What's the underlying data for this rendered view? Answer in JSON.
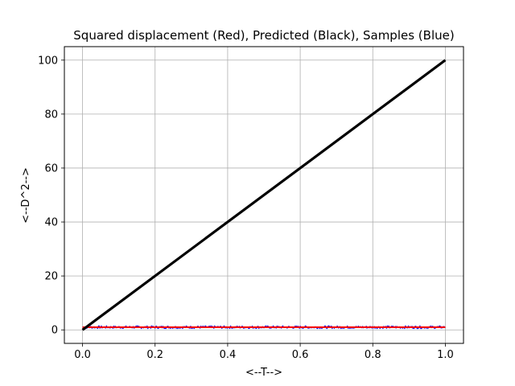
{
  "chart_data": {
    "type": "line",
    "title": "Squared displacement (Red), Predicted (Black), Samples (Blue)",
    "xlabel": "<--T-->",
    "ylabel": "<--D^2-->",
    "xlim": [
      -0.05,
      1.05
    ],
    "ylim": [
      -5,
      105
    ],
    "xticks": [
      0.0,
      0.2,
      0.4,
      0.6,
      0.8,
      1.0
    ],
    "xtick_labels": [
      "0.0",
      "0.2",
      "0.4",
      "0.6",
      "0.8",
      "1.0"
    ],
    "yticks": [
      0,
      20,
      40,
      60,
      80,
      100
    ],
    "ytick_labels": [
      "0",
      "20",
      "40",
      "60",
      "80",
      "100"
    ],
    "grid": true,
    "legend": "none",
    "series": [
      {
        "color": "#0000ff",
        "style": "noisy-samples",
        "x": [
          0.0,
          1.0
        ],
        "y": [
          1.0,
          1.0
        ],
        "amplitude": 0.5
      },
      {
        "color": "#ff0000",
        "style": "line",
        "x": [
          0.0,
          1.0
        ],
        "y": [
          1.0,
          1.0
        ]
      },
      {
        "color": "#000000",
        "style": "line-thick",
        "x": [
          0.0,
          1.0
        ],
        "y": [
          0.0,
          100.0
        ]
      }
    ]
  }
}
